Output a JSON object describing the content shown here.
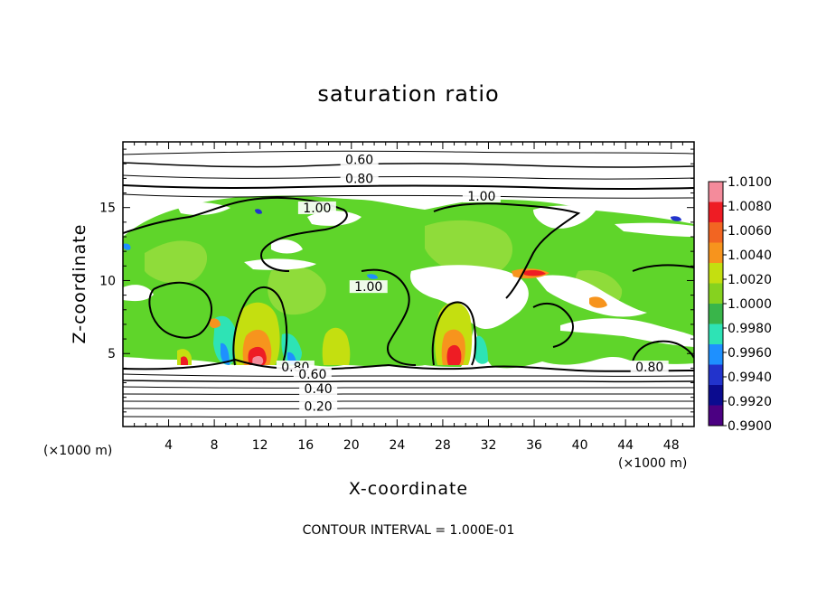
{
  "chart_data": {
    "type": "heatmap",
    "title": "saturation ratio",
    "xlabel": "X-coordinate",
    "ylabel": "Z-coordinate",
    "x_unit": "(×1000 m)",
    "y_unit": "(×1000 m)",
    "xlim": [
      0,
      50
    ],
    "ylim": [
      0,
      19.5
    ],
    "x_ticks": [
      4,
      8,
      12,
      16,
      20,
      24,
      28,
      32,
      36,
      40,
      44,
      48
    ],
    "y_ticks": [
      5,
      10,
      15
    ],
    "colorbar": {
      "labels": [
        "1.0100",
        "1.0080",
        "1.0060",
        "1.0040",
        "1.0020",
        "1.0000",
        "0.9980",
        "0.9960",
        "0.9940",
        "0.9920",
        "0.9900"
      ],
      "colors": [
        "#f48b9b",
        "#ee1c24",
        "#f26522",
        "#f7941d",
        "#c4df10",
        "#86d21f",
        "#39b54a",
        "#2ee3b5",
        "#1e90ff",
        "#2233cc",
        "#0b0b8f",
        "#4b0082"
      ]
    },
    "contour_labels": [
      {
        "text": "0.60",
        "x": 20.7,
        "z": 18.1
      },
      {
        "text": "0.80",
        "x": 20.7,
        "z": 16.8
      },
      {
        "text": "1.00",
        "x": 31.4,
        "z": 15.6
      },
      {
        "text": "1.00",
        "x": 17.0,
        "z": 14.8
      },
      {
        "text": "1.00",
        "x": 21.5,
        "z": 9.4
      },
      {
        "text": "0.80",
        "x": 15.1,
        "z": 3.9
      },
      {
        "text": "0.60",
        "x": 16.6,
        "z": 3.4
      },
      {
        "text": "0.40",
        "x": 17.1,
        "z": 2.4
      },
      {
        "text": "0.20",
        "x": 17.1,
        "z": 1.2
      },
      {
        "text": "0.80",
        "x": 46.1,
        "z": 3.9
      }
    ],
    "grid": false,
    "legend": "right"
  },
  "footer": "CONTOUR INTERVAL = 1.000E-01"
}
